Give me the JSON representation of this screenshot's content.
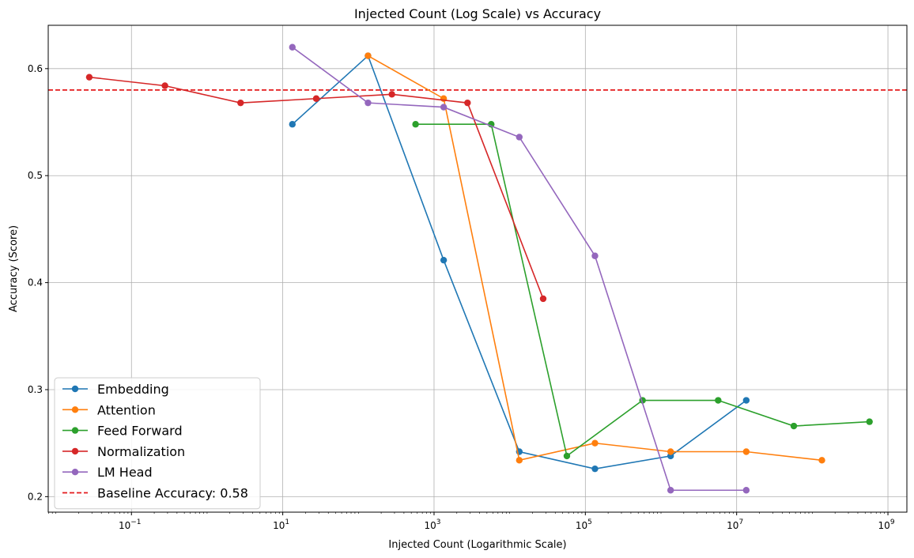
{
  "chart_data": {
    "type": "line",
    "title": "Injected Count (Log Scale) vs Accuracy",
    "xlabel": "Injected Count (Logarithmic Scale)",
    "ylabel": "Accuracy (Score)",
    "xscale": "log",
    "xlim": [
      0.00794,
      1780000000.0
    ],
    "ylim": [
      0.1855,
      0.6405
    ],
    "xticks": [
      {
        "value": 0.1,
        "base": "10",
        "exp": "−1"
      },
      {
        "value": 10,
        "base": "10",
        "exp": "1"
      },
      {
        "value": 1000,
        "base": "10",
        "exp": "3"
      },
      {
        "value": 100000,
        "base": "10",
        "exp": "5"
      },
      {
        "value": 10000000,
        "base": "10",
        "exp": "7"
      },
      {
        "value": 1000000000,
        "base": "10",
        "exp": "9"
      }
    ],
    "yticks": [
      {
        "value": 0.2,
        "label": "0.2"
      },
      {
        "value": 0.3,
        "label": "0.3"
      },
      {
        "value": 0.4,
        "label": "0.4"
      },
      {
        "value": 0.5,
        "label": "0.5"
      },
      {
        "value": 0.6,
        "label": "0.6"
      }
    ],
    "grid": true,
    "legend": "lower-left",
    "series": [
      {
        "name": "Embedding",
        "color": "#1f77b4",
        "points": [
          [
            13.4,
            0.548
          ],
          [
            134,
            0.612
          ],
          [
            1340,
            0.421
          ],
          [
            13400,
            0.242
          ],
          [
            134000,
            0.226
          ],
          [
            1340000,
            0.238
          ],
          [
            13400000,
            0.29
          ]
        ]
      },
      {
        "name": "Attention",
        "color": "#ff7f0e",
        "points": [
          [
            134,
            0.612
          ],
          [
            1340,
            0.572
          ],
          [
            13400,
            0.234
          ],
          [
            134000,
            0.25
          ],
          [
            1340000,
            0.242
          ],
          [
            13400000,
            0.242
          ],
          [
            134000000,
            0.234
          ]
        ]
      },
      {
        "name": "Feed Forward",
        "color": "#2ca02c",
        "points": [
          [
            570,
            0.548
          ],
          [
            5700,
            0.548
          ],
          [
            57000,
            0.238
          ],
          [
            570000,
            0.29
          ],
          [
            5700000,
            0.29
          ],
          [
            57000000,
            0.266
          ],
          [
            570000000,
            0.27
          ]
        ]
      },
      {
        "name": "Normalization",
        "color": "#d62728",
        "points": [
          [
            0.0277,
            0.592
          ],
          [
            0.277,
            0.584
          ],
          [
            2.77,
            0.568
          ],
          [
            27.7,
            0.572
          ],
          [
            277,
            0.576
          ],
          [
            2770,
            0.568
          ],
          [
            27700,
            0.385
          ]
        ]
      },
      {
        "name": "LM Head",
        "color": "#9467bd",
        "points": [
          [
            13.4,
            0.62
          ],
          [
            134,
            0.568
          ],
          [
            1340,
            0.564
          ],
          [
            13400,
            0.536
          ],
          [
            134000,
            0.425
          ],
          [
            1340000,
            0.206
          ],
          [
            13400000,
            0.206
          ]
        ]
      }
    ],
    "baseline": {
      "name": "Baseline Accuracy: 0.58",
      "value": 0.58,
      "color": "#e41a1c",
      "style": "dashed"
    }
  }
}
